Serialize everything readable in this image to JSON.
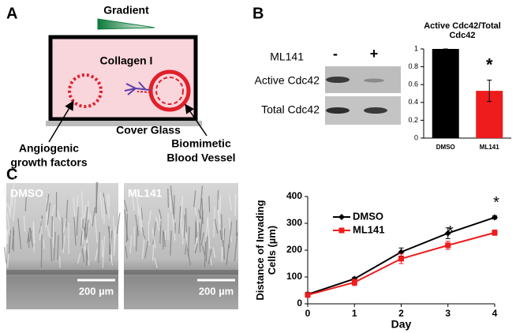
{
  "panel_labels": [
    "A",
    "B",
    "C"
  ],
  "diagram": {
    "gradient": "Gradient",
    "gel": "Collagen I",
    "substrate": "Cover Glass",
    "source_label": [
      "Angiogenic",
      "growth factors"
    ],
    "vessel_label": [
      "Biomimetic",
      "Blood Vessel"
    ]
  },
  "blot": {
    "treatment": "ML141",
    "lanes": [
      "-",
      "+"
    ],
    "rows": [
      "Active Cdc42",
      "Total Cdc42"
    ]
  },
  "images": [
    {
      "label": "DMSO",
      "scale": "200 µm"
    },
    {
      "label": "ML141",
      "scale": "200 µm"
    }
  ],
  "chart_data": [
    {
      "type": "bar",
      "title": "Active Cdc42/Total Cdc42",
      "categories": [
        "DMSO",
        "ML141"
      ],
      "values": [
        1,
        0.53
      ],
      "errors": [
        0,
        0.12
      ],
      "colors": [
        "#000000",
        "#ee1c1c"
      ],
      "ylim": [
        0,
        1
      ],
      "yticks": [
        0,
        0.2,
        0.4,
        0.6,
        0.8,
        1
      ],
      "annotations": [
        "*"
      ]
    },
    {
      "type": "line",
      "xlabel": "Day",
      "ylabel": "Distance of Invading Cells (µm)",
      "x": [
        0,
        1,
        2,
        3,
        4
      ],
      "xlim": [
        0,
        4
      ],
      "xticks": [
        0,
        1,
        2,
        3,
        4
      ],
      "ylim": [
        0,
        400
      ],
      "yticks": [
        0,
        100,
        200,
        300,
        400
      ],
      "series": [
        {
          "name": "DMSO",
          "color": "#000000",
          "values": [
            35,
            93,
            193,
            263,
            322
          ],
          "errors": [
            8,
            6,
            15,
            20,
            6
          ]
        },
        {
          "name": "ML141",
          "color": "#ee1c1c",
          "values": [
            33,
            80,
            168,
            218,
            265
          ],
          "errors": [
            8,
            12,
            18,
            15,
            10
          ]
        }
      ],
      "annotations": [
        "*",
        "*"
      ]
    }
  ]
}
